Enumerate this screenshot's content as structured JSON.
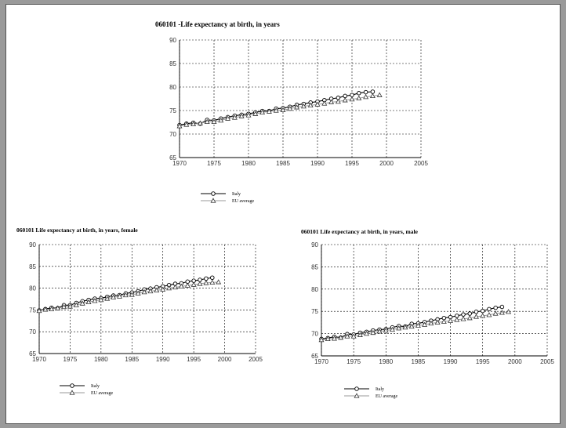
{
  "colors": {
    "page_background": "#ffffff",
    "italy_line": "#000000",
    "eu_line": "#9a9a9a",
    "grid": "#000000"
  },
  "chart_data": [
    {
      "id": "total",
      "type": "line",
      "title": "060101 -Life expectancy at birth, in years",
      "xlabel": "",
      "ylabel": "",
      "xlim": [
        1970,
        2005
      ],
      "ylim": [
        65,
        90
      ],
      "xticks": [
        1970,
        1975,
        1980,
        1985,
        1990,
        1995,
        2000,
        2005
      ],
      "yticks": [
        65,
        70,
        75,
        80,
        85,
        90
      ],
      "grid": true,
      "legend_position": "bottom-left",
      "series": [
        {
          "name": "Italy",
          "marker": "circle",
          "x": [
            1970,
            1971,
            1972,
            1973,
            1974,
            1975,
            1976,
            1977,
            1978,
            1979,
            1980,
            1981,
            1982,
            1983,
            1984,
            1985,
            1986,
            1987,
            1988,
            1989,
            1990,
            1991,
            1992,
            1993,
            1994,
            1995,
            1996,
            1997,
            1998
          ],
          "y": [
            71.9,
            72.2,
            72.4,
            72.2,
            73.0,
            72.9,
            73.3,
            73.6,
            73.9,
            74.1,
            74.3,
            74.6,
            74.9,
            74.9,
            75.4,
            75.5,
            75.8,
            76.2,
            76.4,
            76.7,
            76.9,
            77.2,
            77.5,
            77.7,
            78.1,
            78.3,
            78.7,
            78.9,
            79.0
          ]
        },
        {
          "name": "EU average",
          "marker": "triangle",
          "x": [
            1970,
            1971,
            1972,
            1973,
            1974,
            1975,
            1976,
            1977,
            1978,
            1979,
            1980,
            1981,
            1982,
            1983,
            1984,
            1985,
            1986,
            1987,
            1988,
            1989,
            1990,
            1991,
            1992,
            1993,
            1994,
            1995,
            1996,
            1997,
            1998,
            1999
          ],
          "y": [
            71.7,
            72.0,
            72.1,
            72.3,
            72.6,
            72.6,
            72.9,
            73.3,
            73.5,
            73.8,
            74.0,
            74.3,
            74.6,
            74.8,
            75.0,
            75.1,
            75.4,
            75.7,
            75.9,
            76.1,
            76.3,
            76.5,
            76.8,
            76.9,
            77.2,
            77.4,
            77.6,
            77.9,
            78.1,
            78.3
          ]
        }
      ]
    },
    {
      "id": "female",
      "type": "line",
      "title": "060101 Life expectancy at birth, in years, female",
      "xlabel": "",
      "ylabel": "",
      "xlim": [
        1970,
        2005
      ],
      "ylim": [
        65,
        90
      ],
      "xticks": [
        1970,
        1975,
        1980,
        1985,
        1990,
        1995,
        2000,
        2005
      ],
      "yticks": [
        65,
        70,
        75,
        80,
        85,
        90
      ],
      "grid": true,
      "legend_position": "bottom-left",
      "series": [
        {
          "name": "Italy",
          "marker": "circle",
          "x": [
            1970,
            1971,
            1972,
            1973,
            1974,
            1975,
            1976,
            1977,
            1978,
            1979,
            1980,
            1981,
            1982,
            1983,
            1984,
            1985,
            1986,
            1987,
            1988,
            1989,
            1990,
            1991,
            1992,
            1993,
            1994,
            1995,
            1996,
            1997,
            1998
          ],
          "y": [
            74.9,
            75.2,
            75.5,
            75.4,
            76.1,
            76.1,
            76.6,
            77.0,
            77.3,
            77.6,
            77.7,
            78.0,
            78.3,
            78.4,
            78.8,
            79.0,
            79.3,
            79.7,
            79.9,
            80.2,
            80.4,
            80.7,
            81.0,
            81.1,
            81.5,
            81.7,
            81.9,
            82.2,
            82.4
          ]
        },
        {
          "name": "EU average",
          "marker": "triangle",
          "x": [
            1970,
            1971,
            1972,
            1973,
            1974,
            1975,
            1976,
            1977,
            1978,
            1979,
            1980,
            1981,
            1982,
            1983,
            1984,
            1985,
            1986,
            1987,
            1988,
            1989,
            1990,
            1991,
            1992,
            1993,
            1994,
            1995,
            1996,
            1997,
            1998,
            1999
          ],
          "y": [
            74.8,
            75.1,
            75.2,
            75.4,
            75.7,
            75.8,
            76.1,
            76.5,
            76.8,
            77.1,
            77.3,
            77.6,
            77.9,
            78.1,
            78.4,
            78.5,
            78.8,
            79.1,
            79.3,
            79.5,
            79.7,
            80.0,
            80.2,
            80.4,
            80.6,
            80.8,
            81.0,
            81.2,
            81.3,
            81.4
          ]
        }
      ]
    },
    {
      "id": "male",
      "type": "line",
      "title": "060101 Life expectancy at birth, in years, male",
      "xlabel": "",
      "ylabel": "",
      "xlim": [
        1970,
        2005
      ],
      "ylim": [
        65,
        90
      ],
      "xticks": [
        1970,
        1975,
        1980,
        1985,
        1990,
        1995,
        2000,
        2005
      ],
      "yticks": [
        65,
        70,
        75,
        80,
        85,
        90
      ],
      "grid": true,
      "legend_position": "bottom-left",
      "series": [
        {
          "name": "Italy",
          "marker": "circle",
          "x": [
            1970,
            1971,
            1972,
            1973,
            1974,
            1975,
            1976,
            1977,
            1978,
            1979,
            1980,
            1981,
            1982,
            1983,
            1984,
            1985,
            1986,
            1987,
            1988,
            1989,
            1990,
            1991,
            1992,
            1993,
            1994,
            1995,
            1996,
            1997,
            1998
          ],
          "y": [
            68.8,
            69.0,
            69.3,
            69.1,
            69.9,
            69.8,
            70.2,
            70.4,
            70.7,
            70.9,
            71.0,
            71.4,
            71.7,
            71.6,
            72.2,
            72.3,
            72.6,
            72.9,
            73.2,
            73.5,
            73.7,
            74.0,
            74.3,
            74.5,
            74.9,
            75.1,
            75.5,
            75.8,
            76.0
          ]
        },
        {
          "name": "EU average",
          "marker": "triangle",
          "x": [
            1970,
            1971,
            1972,
            1973,
            1974,
            1975,
            1976,
            1977,
            1978,
            1979,
            1980,
            1981,
            1982,
            1983,
            1984,
            1985,
            1986,
            1987,
            1988,
            1989,
            1990,
            1991,
            1992,
            1993,
            1994,
            1995,
            1996,
            1997,
            1998,
            1999
          ],
          "y": [
            68.6,
            68.8,
            68.9,
            69.1,
            69.4,
            69.4,
            69.7,
            70.0,
            70.2,
            70.5,
            70.7,
            70.9,
            71.2,
            71.4,
            71.6,
            71.8,
            72.0,
            72.3,
            72.5,
            72.7,
            72.9,
            73.1,
            73.3,
            73.5,
            73.8,
            74.0,
            74.2,
            74.5,
            74.7,
            74.9
          ]
        }
      ]
    }
  ]
}
